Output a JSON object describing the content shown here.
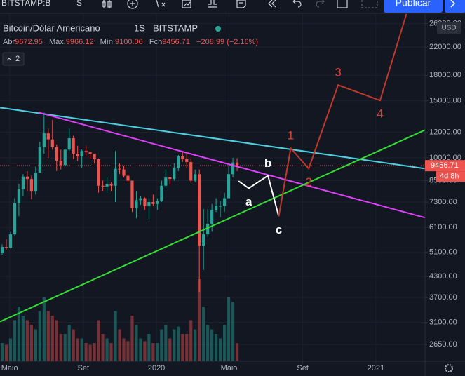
{
  "toolbar": {
    "symbol": "BITSTAMP:B",
    "interval": "S",
    "publish": "Publicar"
  },
  "chart_data": {
    "type": "candlestick",
    "title": "Bitcoin/Dólar Americano",
    "interval": "1S",
    "exchange": "BITSTAMP",
    "ohlc_labels": [
      "Abr",
      "Máx.",
      "Mín.",
      "Fch"
    ],
    "ohlc_value_labels": [
      "9672.95",
      "9966.12",
      "9100.00",
      "9456.71"
    ],
    "change_label": "−208.99 (−2.16%)",
    "indicators_count": 2,
    "currency": "USD",
    "countdown": "4d 8h",
    "log_scale": true,
    "grid": true,
    "colors": {
      "up": "#26a69a",
      "down": "#ef5350"
    },
    "xlim": [
      "2019-04-15",
      "2021-03-24"
    ],
    "xticks": [
      {
        "value": "2019-05-01",
        "label": "Maio"
      },
      {
        "value": "2019-09-01",
        "label": "Set"
      },
      {
        "value": "2020-01-01",
        "label": "2020"
      },
      {
        "value": "2020-05-01",
        "label": "Maio"
      },
      {
        "value": "2020-09-01",
        "label": "Set"
      },
      {
        "value": "2021-01-01",
        "label": "2021"
      }
    ],
    "ylim": [
      2350,
      30750
    ],
    "yticks": [
      {
        "value": 26000,
        "label": "26000.00"
      },
      {
        "value": 22000,
        "label": "22000.00"
      },
      {
        "value": 18000,
        "label": "18000.00"
      },
      {
        "value": 15000,
        "label": "15000.00"
      },
      {
        "value": 12000,
        "label": "12000.00"
      },
      {
        "value": 10000,
        "label": "10000.00"
      },
      {
        "value": 8500,
        "label": "8500.00"
      },
      {
        "value": 7300,
        "label": "7300.00"
      },
      {
        "value": 6100,
        "label": "6100.00"
      },
      {
        "value": 5100,
        "label": "5100.00"
      },
      {
        "value": 4300,
        "label": "4300.00"
      },
      {
        "value": 3700,
        "label": "3700.00"
      },
      {
        "value": 3100,
        "label": "3100.00"
      },
      {
        "value": 2650,
        "label": "2650.00"
      }
    ],
    "x": [
      "2019-04-15",
      "2019-04-22",
      "2019-04-29",
      "2019-05-06",
      "2019-05-13",
      "2019-05-20",
      "2019-05-27",
      "2019-06-03",
      "2019-06-10",
      "2019-06-17",
      "2019-06-24",
      "2019-07-01",
      "2019-07-08",
      "2019-07-15",
      "2019-07-22",
      "2019-07-29",
      "2019-08-05",
      "2019-08-12",
      "2019-08-19",
      "2019-08-26",
      "2019-09-02",
      "2019-09-09",
      "2019-09-16",
      "2019-09-23",
      "2019-09-30",
      "2019-10-07",
      "2019-10-14",
      "2019-10-21",
      "2019-10-28",
      "2019-11-04",
      "2019-11-11",
      "2019-11-18",
      "2019-11-25",
      "2019-12-02",
      "2019-12-09",
      "2019-12-16",
      "2019-12-23",
      "2019-12-30",
      "2020-01-06",
      "2020-01-13",
      "2020-01-20",
      "2020-01-27",
      "2020-02-03",
      "2020-02-10",
      "2020-02-17",
      "2020-02-24",
      "2020-03-02",
      "2020-03-09",
      "2020-03-16",
      "2020-03-23",
      "2020-03-30",
      "2020-04-06",
      "2020-04-13",
      "2020-04-20",
      "2020-04-27",
      "2020-05-04",
      "2020-05-11"
    ],
    "open": [
      5070,
      5300,
      5270,
      5800,
      7250,
      8000,
      8750,
      8600,
      7900,
      9000,
      10800,
      11900,
      11400,
      10800,
      9800,
      9500,
      10600,
      11500,
      10300,
      10100,
      10500,
      10400,
      10300,
      9900,
      8200,
      8150,
      8300,
      8200,
      9250,
      9200,
      8800,
      8500,
      7000,
      7400,
      7500,
      7100,
      7300,
      7200,
      7350,
      8200,
      8700,
      8600,
      9300,
      10100,
      9900,
      9700,
      8500,
      8900,
      5350,
      5800,
      6250,
      6900,
      7100,
      7100,
      7500,
      8900,
      9672.95
    ],
    "high": [
      5400,
      5600,
      5900,
      7500,
      8300,
      8900,
      9100,
      8800,
      9400,
      11200,
      13800,
      12300,
      13100,
      11000,
      10600,
      10700,
      12300,
      11700,
      10900,
      10600,
      10900,
      10450,
      10300,
      9950,
      8500,
      8700,
      8400,
      10500,
      9600,
      9450,
      8900,
      8500,
      7900,
      7600,
      7550,
      7500,
      7700,
      7500,
      8500,
      9200,
      8750,
      9600,
      10200,
      10500,
      10300,
      9950,
      9200,
      9200,
      6950,
      6950,
      7200,
      7500,
      7350,
      7800,
      9500,
      10000,
      9966.12
    ],
    "low": [
      5020,
      5200,
      5250,
      5750,
      6600,
      7600,
      7900,
      7450,
      7700,
      9000,
      10300,
      10000,
      10600,
      9100,
      9200,
      9400,
      10500,
      9900,
      9800,
      9300,
      10100,
      9900,
      9600,
      7800,
      7900,
      7800,
      7900,
      7300,
      8900,
      8700,
      8400,
      6800,
      6500,
      7150,
      6900,
      6450,
      7100,
      6900,
      7300,
      8100,
      8250,
      8500,
      9100,
      9700,
      9300,
      8400,
      8400,
      3850,
      4500,
      5700,
      5900,
      6800,
      6550,
      6800,
      7500,
      8700,
      9100
    ],
    "close": [
      5300,
      5270,
      5800,
      7250,
      8000,
      8750,
      8600,
      7900,
      9000,
      10800,
      11900,
      11400,
      10800,
      9800,
      9500,
      10600,
      11500,
      10300,
      10100,
      10500,
      10400,
      10300,
      9900,
      8200,
      8150,
      8300,
      8200,
      9250,
      9200,
      8800,
      8500,
      7000,
      7400,
      7500,
      7100,
      7300,
      7200,
      7350,
      8200,
      8700,
      8600,
      9300,
      10100,
      9900,
      9700,
      8500,
      8900,
      5350,
      5800,
      6250,
      6900,
      7100,
      7100,
      7500,
      8900,
      9672.95,
      9456.71
    ],
    "volume": [
      20,
      18,
      25,
      45,
      60,
      50,
      45,
      40,
      35,
      55,
      70,
      55,
      50,
      45,
      30,
      30,
      40,
      35,
      25,
      25,
      20,
      18,
      20,
      45,
      30,
      25,
      20,
      55,
      35,
      25,
      22,
      50,
      40,
      25,
      22,
      30,
      20,
      20,
      35,
      40,
      25,
      35,
      38,
      30,
      30,
      45,
      35,
      90,
      60,
      40,
      35,
      30,
      25,
      40,
      70,
      65,
      20
    ],
    "volume_lim": [
      0,
      100
    ],
    "trendlines": [
      {
        "color": "#4dd0e1",
        "points": [
          {
            "x": "2019-04-15",
            "y": 14300
          },
          {
            "x": "2021-03-24",
            "y": 9260
          }
        ]
      },
      {
        "color": "#e040fb",
        "points": [
          {
            "x": "2019-06-18",
            "y": 13820
          },
          {
            "x": "2021-03-24",
            "y": 6530
          }
        ]
      },
      {
        "color": "#33dd33",
        "points": [
          {
            "x": "2019-04-15",
            "y": 3115
          },
          {
            "x": "2021-03-24",
            "y": 12190
          }
        ]
      }
    ],
    "waves": [
      {
        "color": "#ffffff",
        "points": [
          {
            "x": "2020-05-17",
            "y": 8470
          },
          {
            "x": "2020-06-03",
            "y": 8050,
            "label": "a"
          },
          {
            "x": "2020-07-05",
            "y": 8810,
            "label": "b"
          },
          {
            "x": "2020-07-23",
            "y": 6590,
            "label": "c"
          }
        ]
      },
      {
        "color": "#c0392b",
        "points": [
          {
            "x": "2020-07-23",
            "y": 6590
          },
          {
            "x": "2020-08-12",
            "y": 10710,
            "label": "1"
          },
          {
            "x": "2020-09-11",
            "y": 9260,
            "label": "2"
          },
          {
            "x": "2020-10-30",
            "y": 16790,
            "label": "3"
          },
          {
            "x": "2021-01-08",
            "y": 15040,
            "label": "4"
          },
          {
            "x": "2021-02-21",
            "y": 27830
          }
        ]
      }
    ]
  }
}
